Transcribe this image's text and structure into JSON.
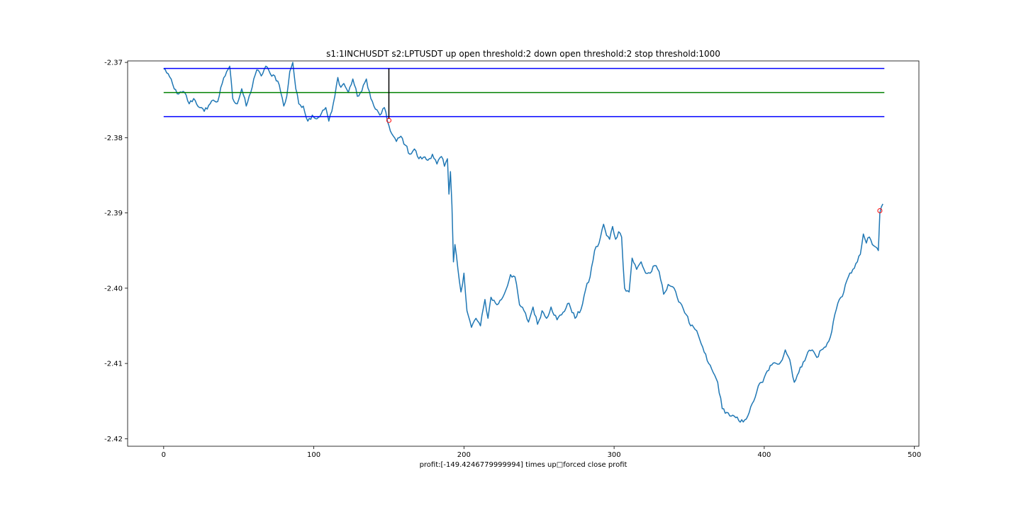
{
  "chart_data": {
    "type": "line",
    "title": "s1:1INCHUSDT s2:LPTUSDT up open threshold:2 down open threshold:2 stop threshold:1000",
    "xlabel": "profit:[-149.4246779999994] times up□forced close profit",
    "ylabel": "",
    "xlim": [
      -24,
      503
    ],
    "ylim": [
      -2.421,
      -2.3698
    ],
    "xticks": [
      0,
      100,
      200,
      300,
      400,
      500
    ],
    "xtick_labels": [
      "0",
      "100",
      "200",
      "300",
      "400",
      "500"
    ],
    "yticks": [
      -2.37,
      -2.38,
      -2.39,
      -2.4,
      -2.41,
      -2.42
    ],
    "ytick_labels": [
      "-2.37",
      "-2.38",
      "-2.39",
      "-2.40",
      "-2.41",
      "-2.42"
    ],
    "grid": false,
    "series": [
      {
        "color": "#1f77b4",
        "anchors": [
          [
            0,
            -2.3708
          ],
          [
            3,
            -2.3715
          ],
          [
            7,
            -2.3735
          ],
          [
            10,
            -2.3742
          ],
          [
            14,
            -2.374
          ],
          [
            17,
            -2.3755
          ],
          [
            20,
            -2.3748
          ],
          [
            24,
            -2.376
          ],
          [
            27,
            -2.3765
          ],
          [
            30,
            -2.3757
          ],
          [
            33,
            -2.375
          ],
          [
            36,
            -2.3752
          ],
          [
            39,
            -2.3728
          ],
          [
            42,
            -2.3712
          ],
          [
            44,
            -2.3705
          ],
          [
            46,
            -2.3748
          ],
          [
            49,
            -2.3755
          ],
          [
            52,
            -2.3735
          ],
          [
            55,
            -2.3758
          ],
          [
            58,
            -2.374
          ],
          [
            60,
            -2.3722
          ],
          [
            62,
            -2.371
          ],
          [
            65,
            -2.3718
          ],
          [
            68,
            -2.3705
          ],
          [
            71,
            -2.3715
          ],
          [
            74,
            -2.3718
          ],
          [
            77,
            -2.373
          ],
          [
            80,
            -2.3758
          ],
          [
            82,
            -2.3745
          ],
          [
            84,
            -2.3712
          ],
          [
            86,
            -2.37
          ],
          [
            88,
            -2.3735
          ],
          [
            90,
            -2.3755
          ],
          [
            93,
            -2.3758
          ],
          [
            96,
            -2.3778
          ],
          [
            99,
            -2.377
          ],
          [
            102,
            -2.3775
          ],
          [
            105,
            -2.3768
          ],
          [
            108,
            -2.376
          ],
          [
            110,
            -2.3778
          ],
          [
            112,
            -2.3765
          ],
          [
            114,
            -2.3745
          ],
          [
            116,
            -2.372
          ],
          [
            118,
            -2.3733
          ],
          [
            120,
            -2.3728
          ],
          [
            123,
            -2.374
          ],
          [
            126,
            -2.3722
          ],
          [
            129,
            -2.3745
          ],
          [
            132,
            -2.3738
          ],
          [
            135,
            -2.3722
          ],
          [
            138,
            -2.3748
          ],
          [
            141,
            -2.3762
          ],
          [
            144,
            -2.377
          ],
          [
            147,
            -2.376
          ],
          [
            149,
            -2.3778
          ],
          [
            152,
            -2.3795
          ],
          [
            155,
            -2.3805
          ],
          [
            158,
            -2.3798
          ],
          [
            161,
            -2.381
          ],
          [
            164,
            -2.3822
          ],
          [
            167,
            -2.3815
          ],
          [
            170,
            -2.3828
          ],
          [
            173,
            -2.3826
          ],
          [
            176,
            -2.383
          ],
          [
            179,
            -2.3822
          ],
          [
            182,
            -2.3835
          ],
          [
            185,
            -2.3825
          ],
          [
            187,
            -2.3838
          ],
          [
            189,
            -2.3828
          ],
          [
            190,
            -2.3875
          ],
          [
            191,
            -2.3845
          ],
          [
            192,
            -2.389
          ],
          [
            193,
            -2.3965
          ],
          [
            194,
            -2.3942
          ],
          [
            196,
            -2.3975
          ],
          [
            198,
            -2.4005
          ],
          [
            200,
            -2.398
          ],
          [
            202,
            -2.403
          ],
          [
            205,
            -2.4052
          ],
          [
            208,
            -2.404
          ],
          [
            211,
            -2.405
          ],
          [
            214,
            -2.4015
          ],
          [
            216,
            -2.404
          ],
          [
            218,
            -2.4012
          ],
          [
            222,
            -2.4022
          ],
          [
            225,
            -2.4015
          ],
          [
            228,
            -2.4002
          ],
          [
            231,
            -2.3982
          ],
          [
            234,
            -2.3985
          ],
          [
            237,
            -2.4022
          ],
          [
            240,
            -2.403
          ],
          [
            243,
            -2.4045
          ],
          [
            246,
            -2.4025
          ],
          [
            249,
            -2.4048
          ],
          [
            252,
            -2.403
          ],
          [
            255,
            -2.404
          ],
          [
            258,
            -2.4025
          ],
          [
            262,
            -2.4042
          ],
          [
            266,
            -2.4032
          ],
          [
            270,
            -2.402
          ],
          [
            274,
            -2.404
          ],
          [
            278,
            -2.4028
          ],
          [
            281,
            -2.4002
          ],
          [
            284,
            -2.3985
          ],
          [
            287,
            -2.395
          ],
          [
            290,
            -2.394
          ],
          [
            293,
            -2.3915
          ],
          [
            295,
            -2.393
          ],
          [
            297,
            -2.3935
          ],
          [
            299,
            -2.3918
          ],
          [
            301,
            -2.3935
          ],
          [
            303,
            -2.3925
          ],
          [
            305,
            -2.3932
          ],
          [
            307,
            -2.4
          ],
          [
            310,
            -2.4005
          ],
          [
            312,
            -2.396
          ],
          [
            315,
            -2.3975
          ],
          [
            318,
            -2.3965
          ],
          [
            321,
            -2.398
          ],
          [
            324,
            -2.398
          ],
          [
            327,
            -2.397
          ],
          [
            330,
            -2.3978
          ],
          [
            333,
            -2.4008
          ],
          [
            336,
            -2.3995
          ],
          [
            339,
            -2.3998
          ],
          [
            342,
            -2.4012
          ],
          [
            345,
            -2.4022
          ],
          [
            348,
            -2.4035
          ],
          [
            351,
            -2.405
          ],
          [
            354,
            -2.4055
          ],
          [
            357,
            -2.4068
          ],
          [
            360,
            -2.4085
          ],
          [
            363,
            -2.41
          ],
          [
            366,
            -2.4112
          ],
          [
            369,
            -2.4125
          ],
          [
            372,
            -2.416
          ],
          [
            375,
            -2.4165
          ],
          [
            378,
            -2.417
          ],
          [
            381,
            -2.4172
          ],
          [
            384,
            -2.4178
          ],
          [
            387,
            -2.4175
          ],
          [
            390,
            -2.4165
          ],
          [
            393,
            -2.415
          ],
          [
            396,
            -2.413
          ],
          [
            399,
            -2.4125
          ],
          [
            402,
            -2.411
          ],
          [
            405,
            -2.4102
          ],
          [
            408,
            -2.41
          ],
          [
            411,
            -2.4098
          ],
          [
            414,
            -2.4082
          ],
          [
            417,
            -2.4095
          ],
          [
            420,
            -2.4125
          ],
          [
            423,
            -2.4112
          ],
          [
            426,
            -2.4098
          ],
          [
            429,
            -2.4085
          ],
          [
            432,
            -2.4082
          ],
          [
            435,
            -2.4092
          ],
          [
            438,
            -2.4082
          ],
          [
            441,
            -2.4078
          ],
          [
            444,
            -2.4065
          ],
          [
            447,
            -2.4035
          ],
          [
            450,
            -2.4015
          ],
          [
            453,
            -2.4005
          ],
          [
            456,
            -2.3985
          ],
          [
            459,
            -2.3975
          ],
          [
            462,
            -2.3965
          ],
          [
            464,
            -2.3955
          ],
          [
            466,
            -2.3928
          ],
          [
            468,
            -2.394
          ],
          [
            470,
            -2.3932
          ],
          [
            472,
            -2.3942
          ],
          [
            474,
            -2.3945
          ],
          [
            476,
            -2.395
          ],
          [
            477,
            -2.39
          ],
          [
            478,
            -2.3892
          ],
          [
            479,
            -2.3888
          ]
        ]
      },
      {
        "color": "#0000ff",
        "points": [
          [
            0,
            -2.3708
          ],
          [
            480,
            -2.3708
          ]
        ]
      },
      {
        "color": "#008000",
        "points": [
          [
            0,
            -2.374
          ],
          [
            480,
            -2.374
          ]
        ]
      },
      {
        "color": "#0000ff",
        "points": [
          [
            0,
            -2.3772
          ],
          [
            480,
            -2.3772
          ]
        ]
      },
      {
        "color": "#000000",
        "points": [
          [
            150,
            -2.3708
          ],
          [
            150,
            -2.3775
          ]
        ]
      }
    ],
    "markers": [
      {
        "x": 150,
        "y": -2.3777,
        "color": "#ff0000"
      },
      {
        "x": 477,
        "y": -2.3897,
        "color": "#ff0000"
      }
    ]
  }
}
